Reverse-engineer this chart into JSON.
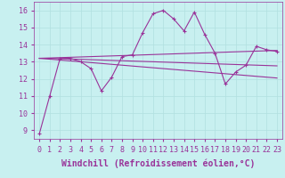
{
  "xlabel": "Windchill (Refroidissement éolien,°C)",
  "background_color": "#c8f0f0",
  "line_color": "#993399",
  "grid_color": "#b0e0e0",
  "xlim": [
    -0.5,
    23.5
  ],
  "ylim": [
    8.5,
    16.5
  ],
  "xticks": [
    0,
    1,
    2,
    3,
    4,
    5,
    6,
    7,
    8,
    9,
    10,
    11,
    12,
    13,
    14,
    15,
    16,
    17,
    18,
    19,
    20,
    21,
    22,
    23
  ],
  "yticks": [
    9,
    10,
    11,
    12,
    13,
    14,
    15,
    16
  ],
  "lines": [
    {
      "y": [
        8.8,
        11.0,
        13.2,
        13.2,
        13.0,
        12.6,
        11.3,
        12.1,
        13.3,
        13.4,
        14.7,
        15.8,
        16.0,
        15.5,
        14.8,
        15.9,
        14.6,
        13.5,
        11.7,
        12.4,
        12.8,
        13.9,
        13.7,
        13.6
      ],
      "marker": true
    },
    {
      "y": [
        13.2,
        13.15,
        13.1,
        13.05,
        13.0,
        12.95,
        12.9,
        12.85,
        12.8,
        12.75,
        12.7,
        12.65,
        12.6,
        12.55,
        12.5,
        12.45,
        12.4,
        12.35,
        12.3,
        12.25,
        12.2,
        12.15,
        12.1,
        12.05
      ],
      "marker": false
    },
    {
      "y": [
        13.2,
        13.22,
        13.24,
        13.26,
        13.28,
        13.3,
        13.32,
        13.34,
        13.36,
        13.38,
        13.4,
        13.42,
        13.44,
        13.46,
        13.48,
        13.5,
        13.52,
        13.54,
        13.56,
        13.58,
        13.6,
        13.62,
        13.64,
        13.66
      ],
      "marker": false
    },
    {
      "y": [
        13.2,
        13.2,
        13.18,
        13.16,
        13.14,
        13.12,
        13.1,
        13.08,
        13.06,
        13.04,
        13.02,
        13.0,
        12.98,
        12.96,
        12.94,
        12.92,
        12.9,
        12.88,
        12.86,
        12.84,
        12.82,
        12.8,
        12.78,
        12.76
      ],
      "marker": false
    }
  ],
  "font_size": 7,
  "tick_font_size": 6,
  "xlabel_fontsize": 7
}
